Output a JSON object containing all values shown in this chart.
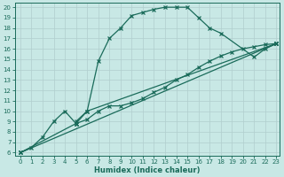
{
  "xlabel": "Humidex (Indice chaleur)",
  "bg_color": "#c8e8e5",
  "line_color": "#1a6b5a",
  "grid_color": "#b0cece",
  "xlim_min": -0.5,
  "xlim_max": 23.3,
  "ylim_min": 5.7,
  "ylim_max": 20.4,
  "xticks": [
    0,
    1,
    2,
    3,
    4,
    5,
    6,
    7,
    8,
    9,
    10,
    11,
    12,
    13,
    14,
    15,
    16,
    17,
    18,
    19,
    20,
    21,
    22,
    23
  ],
  "yticks": [
    6,
    7,
    8,
    9,
    10,
    11,
    12,
    13,
    14,
    15,
    16,
    17,
    18,
    19,
    20
  ],
  "lw": 0.9,
  "ms": 3.0,
  "mew": 0.9,
  "line1_x": [
    5,
    6,
    7,
    8,
    9,
    10,
    11,
    12,
    13,
    14,
    15,
    16,
    17,
    18,
    21,
    22,
    23
  ],
  "line1_y": [
    9.0,
    10.0,
    14.8,
    17.0,
    18.0,
    19.2,
    19.5,
    19.8,
    20.0,
    20.0,
    20.0,
    19.0,
    18.0,
    17.5,
    15.2,
    16.0,
    16.5
  ],
  "line2_x": [
    0,
    1,
    2,
    3,
    4,
    5,
    5,
    6,
    7,
    8,
    9,
    10,
    11,
    12,
    13,
    14,
    15,
    16,
    17,
    18,
    19,
    20,
    21,
    22,
    23
  ],
  "line2_y": [
    6.0,
    6.5,
    7.5,
    9.0,
    10.0,
    8.8,
    8.8,
    9.2,
    10.0,
    10.5,
    10.5,
    10.8,
    11.2,
    11.8,
    12.3,
    13.0,
    13.5,
    14.2,
    14.8,
    15.3,
    15.7,
    16.0,
    16.2,
    16.4,
    16.5
  ],
  "line3_x": [
    0,
    5,
    6,
    23
  ],
  "line3_y": [
    6.0,
    8.8,
    10.0,
    16.5
  ],
  "line4_x": [
    0,
    23
  ],
  "line4_y": [
    6.0,
    16.5
  ]
}
